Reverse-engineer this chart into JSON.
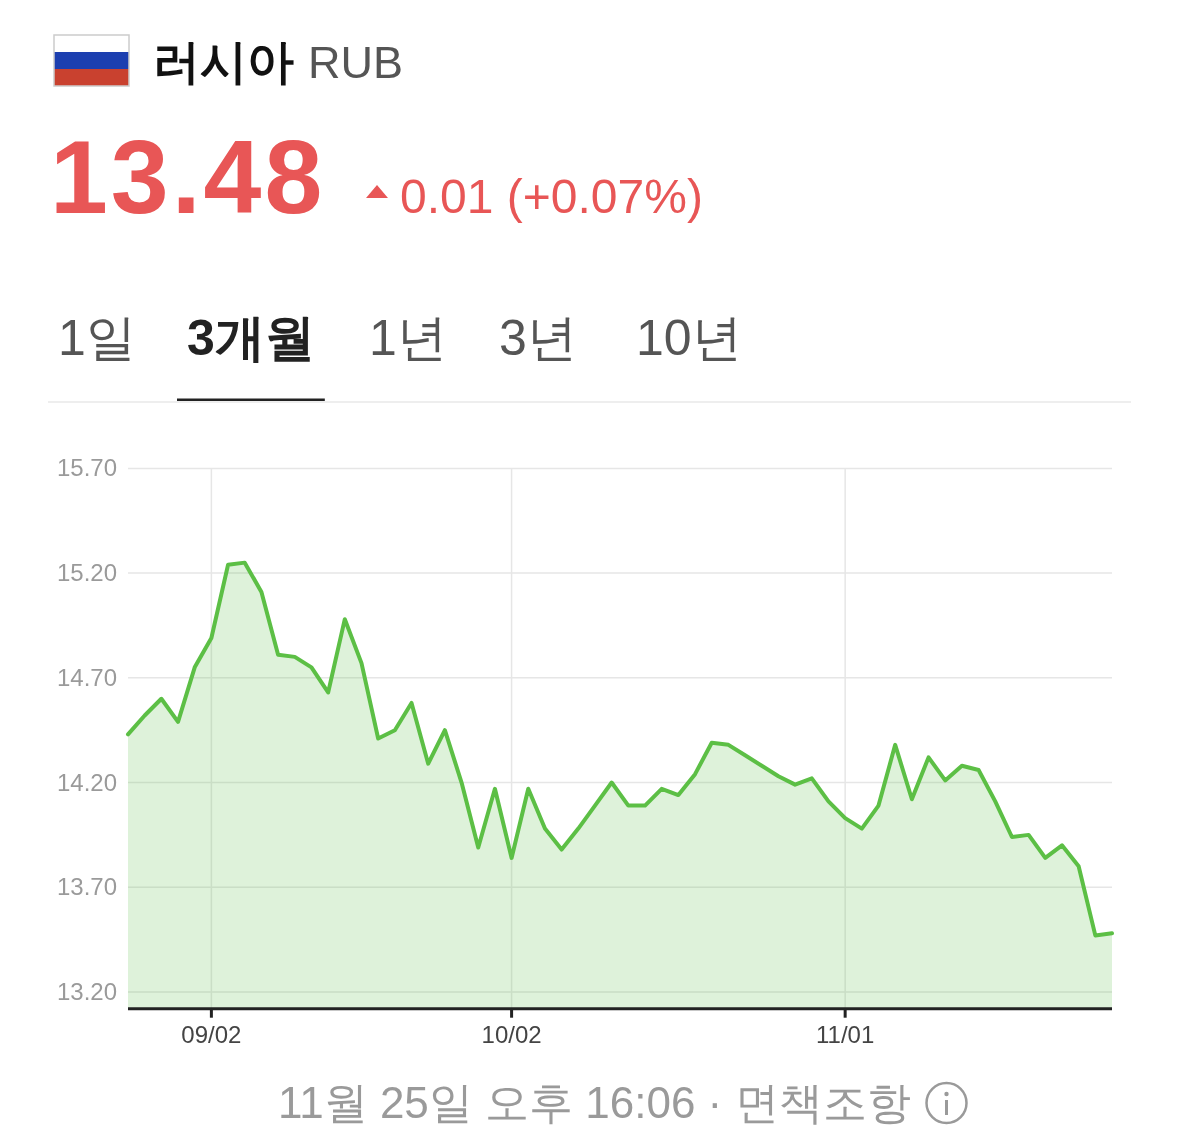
{
  "chart_data": {
    "type": "area",
    "title": "러시아 RUB",
    "annotations": [
      "13.48",
      "0.01 (+0.07%)",
      "1일",
      "3개월",
      "1년",
      "3년",
      "10년",
      "11월 25일 오후 16:06 · 면책조항"
    ],
    "categories": [
      null,
      null,
      null,
      null,
      null,
      "09/02",
      null,
      null,
      null,
      null,
      null,
      null,
      null,
      null,
      null,
      null,
      null,
      null,
      null,
      null,
      null,
      null,
      null,
      "10/02",
      null,
      null,
      null,
      null,
      null,
      null,
      null,
      null,
      null,
      null,
      null,
      null,
      null,
      null,
      null,
      null,
      null,
      null,
      null,
      "11/01",
      null,
      null,
      null,
      null,
      null,
      null,
      null,
      null,
      null,
      null,
      null,
      null,
      null,
      null,
      null,
      null
    ],
    "series": [
      {
        "color": "#5cbf45",
        "values": [
          14.43,
          14.52,
          14.6,
          14.49,
          14.75,
          14.89,
          15.24,
          15.25,
          15.11,
          14.81,
          14.8,
          14.75,
          14.63,
          14.98,
          14.77,
          14.41,
          14.45,
          14.58,
          14.29,
          14.45,
          14.2,
          13.89,
          14.17,
          13.84,
          14.17,
          13.98,
          13.88,
          13.98,
          14.09,
          14.2,
          14.09,
          14.09,
          14.17,
          14.14,
          14.24,
          14.39,
          14.38,
          14.33,
          14.28,
          14.23,
          14.19,
          14.22,
          14.11,
          14.03,
          13.98,
          14.09,
          14.38,
          14.12,
          14.32,
          14.21,
          14.28,
          14.26,
          14.11,
          13.94,
          13.95,
          13.84,
          13.9,
          13.8,
          13.47,
          13.48
        ]
      }
    ],
    "ylim": [
      13.12,
      15.7
    ],
    "yticks": [
      {
        "value": 13.2,
        "label": "13.20"
      },
      {
        "value": 13.7,
        "label": "13.70"
      },
      {
        "value": 14.2,
        "label": "14.20"
      },
      {
        "value": 14.7,
        "label": "14.70"
      },
      {
        "value": 15.2,
        "label": "15.20"
      },
      {
        "value": 15.7,
        "label": "15.70"
      }
    ],
    "grid": true
  }
}
